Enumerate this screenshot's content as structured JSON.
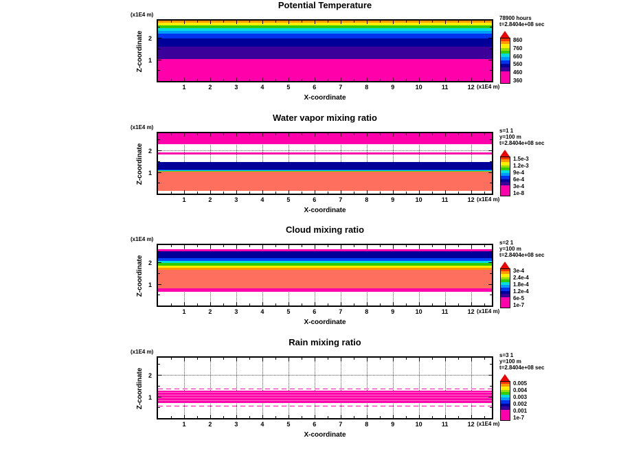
{
  "page": {
    "background": "#ffffff",
    "text_color": "#000000"
  },
  "colorbar": {
    "tip_color": "#ee0000",
    "segments": [
      {
        "color": "#ff3300",
        "pct": 6
      },
      {
        "color": "#ff9900",
        "pct": 7
      },
      {
        "color": "#ffee00",
        "pct": 8
      },
      {
        "color": "#99dd00",
        "pct": 6
      },
      {
        "color": "#33cc00",
        "pct": 7
      },
      {
        "color": "#00dddd",
        "pct": 8
      },
      {
        "color": "#0099ff",
        "pct": 7
      },
      {
        "color": "#0033ee",
        "pct": 8
      },
      {
        "color": "#000099",
        "pct": 8
      },
      {
        "color": "#3a0099",
        "pct": 9
      },
      {
        "color": "#ff00aa",
        "pct": 26
      }
    ]
  },
  "charts": [
    {
      "type": "heatmap",
      "title": "Potential Temperature",
      "xlabel": "X-coordinate",
      "ylabel": "Z-coordinate",
      "x_unit": "(x1E4 m)",
      "y_unit": "(x1E4 m)",
      "xlim": [
        0,
        12.8
      ],
      "ylim": [
        0,
        2.8
      ],
      "x_ticks": [
        1,
        2,
        3,
        4,
        5,
        6,
        7,
        8,
        9,
        10,
        11,
        12
      ],
      "y_ticks": [
        1,
        2
      ],
      "grid": "dotted",
      "annotations": [
        "78900 hours",
        "t=2.8404e+08 sec"
      ],
      "colorbar_labels": [
        "860",
        "760",
        "660",
        "560",
        "460",
        "360"
      ],
      "bands": [
        {
          "z": [
            2.72,
            2.8
          ],
          "color": "#ff9900"
        },
        {
          "z": [
            2.58,
            2.72
          ],
          "color": "#ffee00"
        },
        {
          "z": [
            2.46,
            2.58
          ],
          "color": "#33cc00"
        },
        {
          "z": [
            2.32,
            2.46
          ],
          "color": "#00dddd"
        },
        {
          "z": [
            2.18,
            2.32
          ],
          "color": "#0099ff"
        },
        {
          "z": [
            1.98,
            2.18
          ],
          "color": "#0033ee"
        },
        {
          "z": [
            1.58,
            1.98
          ],
          "color": "#000099"
        },
        {
          "z": [
            1.02,
            1.58
          ],
          "color": "#3a0099"
        },
        {
          "z": [
            0.0,
            1.02
          ],
          "color": "#ff00aa"
        }
      ]
    },
    {
      "type": "heatmap",
      "title": "Water vapor mixing ratio",
      "xlabel": "X-coordinate",
      "ylabel": "Z-coordinate",
      "x_unit": "(x1E4 m)",
      "y_unit": "(x1E4 m)",
      "xlim": [
        0,
        12.8
      ],
      "ylim": [
        0,
        2.8
      ],
      "x_ticks": [
        1,
        2,
        3,
        4,
        5,
        6,
        7,
        8,
        9,
        10,
        11,
        12
      ],
      "y_ticks": [
        1,
        2
      ],
      "grid": "dotted",
      "annotations": [
        "s=1 1",
        "y=100 m",
        "t=2.8404e+08 sec"
      ],
      "colorbar_labels": [
        "1.5e-3",
        "1.2e-3",
        "9e-4",
        "6e-4",
        "3e-4",
        "1e-8"
      ],
      "bands": [
        {
          "z": [
            2.3,
            2.8
          ],
          "color": "#ff00aa"
        },
        {
          "z": [
            1.82,
            1.9
          ],
          "color": "#ff00aa"
        },
        {
          "z": [
            1.12,
            1.46
          ],
          "color": "#000099"
        },
        {
          "z": [
            1.08,
            1.12
          ],
          "color": "#0044ff"
        },
        {
          "z": [
            1.05,
            1.08
          ],
          "color": "#00dddd"
        },
        {
          "z": [
            1.02,
            1.05
          ],
          "color": "#66cc00"
        },
        {
          "z": [
            0.12,
            1.02
          ],
          "color": "#ff6f5e"
        }
      ]
    },
    {
      "type": "heatmap",
      "title": "Cloud mixing ratio",
      "xlabel": "X-coordinate",
      "ylabel": "Z-coordinate",
      "x_unit": "(x1E4 m)",
      "y_unit": "(x1E4 m)",
      "xlim": [
        0,
        12.8
      ],
      "ylim": [
        0,
        2.8
      ],
      "x_ticks": [
        1,
        2,
        3,
        4,
        5,
        6,
        7,
        8,
        9,
        10,
        11,
        12
      ],
      "y_ticks": [
        1,
        2
      ],
      "grid": "dotted",
      "annotations": [
        "s=2 1",
        "y=100 m",
        "t=2.8404e+08 sec"
      ],
      "colorbar_labels": [
        "3e-4",
        "2.4e-4",
        "1.8e-4",
        "1.2e-4",
        "6e-5",
        "1e-7"
      ],
      "bands": [
        {
          "z": [
            2.52,
            2.62
          ],
          "color": "#ff00aa"
        },
        {
          "z": [
            2.2,
            2.52
          ],
          "color": "#000099"
        },
        {
          "z": [
            2.08,
            2.2
          ],
          "color": "#0044ff"
        },
        {
          "z": [
            1.97,
            2.08
          ],
          "color": "#00dddd"
        },
        {
          "z": [
            1.86,
            1.97
          ],
          "color": "#33cc00"
        },
        {
          "z": [
            1.76,
            1.86
          ],
          "color": "#ffee00"
        },
        {
          "z": [
            1.66,
            1.76
          ],
          "color": "#ff9900"
        },
        {
          "z": [
            0.8,
            1.66
          ],
          "color": "#ff6f5e"
        },
        {
          "z": [
            0.64,
            0.8
          ],
          "color": "#ff00aa"
        }
      ]
    },
    {
      "type": "heatmap",
      "title": "Rain mixing ratio",
      "xlabel": "X-coordinate",
      "ylabel": "Z-coordinate",
      "x_unit": "(x1E4 m)",
      "y_unit": "(x1E4 m)",
      "xlim": [
        0,
        12.8
      ],
      "ylim": [
        0,
        2.8
      ],
      "x_ticks": [
        1,
        2,
        3,
        4,
        5,
        6,
        7,
        8,
        9,
        10,
        11,
        12
      ],
      "y_ticks": [
        1,
        2
      ],
      "grid": "dotted",
      "annotations": [
        "s=3 1",
        "y=100 m",
        "t=2.8404e+08 sec"
      ],
      "colorbar_labels": [
        "0.005",
        "0.004",
        "0.003",
        "0.002",
        "0.001",
        "1e-7"
      ],
      "bands": [
        {
          "z": [
            1.34,
            1.38
          ],
          "color": "#ff00aa",
          "style": "dashed"
        },
        {
          "z": [
            0.7,
            1.26
          ],
          "color": "#ff00aa",
          "texture": true
        },
        {
          "z": [
            0.54,
            0.58
          ],
          "color": "#ff00aa",
          "style": "dashed"
        }
      ]
    }
  ]
}
